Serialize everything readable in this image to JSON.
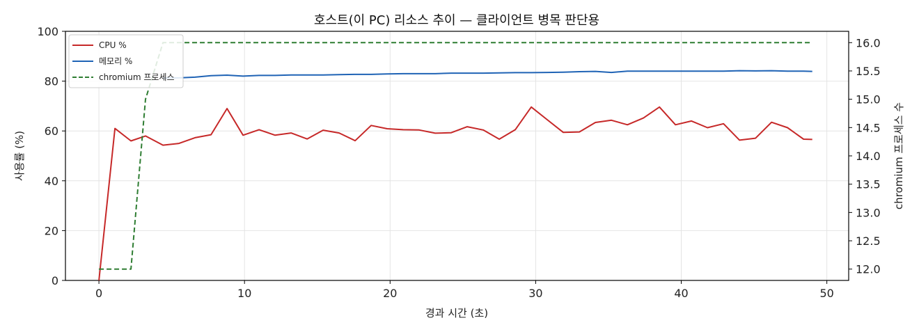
{
  "chart_data": {
    "type": "line",
    "title": "호스트(이 PC) 리소스 추이 — 클라이언트 병목 판단용",
    "xlabel": "경과 시간 (초)",
    "ylabel": "사용률 (%)",
    "y2label": "chromium 프로세스 수",
    "xlim": [
      -2.3,
      51.5
    ],
    "ylim": [
      0,
      100
    ],
    "y2lim": [
      11.8,
      16.2
    ],
    "xticks": [
      0,
      10,
      20,
      30,
      40,
      50
    ],
    "yticks": [
      0,
      20,
      40,
      60,
      80,
      100
    ],
    "y2ticks": [
      12.0,
      12.5,
      13.0,
      13.5,
      14.0,
      14.5,
      15.0,
      15.5,
      16.0
    ],
    "grid": true,
    "legend": "top-left",
    "x": [
      0,
      1.1,
      2.2,
      3.2,
      4.4,
      5.5,
      6.6,
      7.7,
      8.8,
      9.9,
      11.0,
      12.1,
      13.2,
      14.3,
      15.4,
      16.5,
      17.6,
      18.7,
      19.8,
      20.9,
      22.0,
      23.1,
      24.2,
      25.3,
      26.4,
      27.5,
      28.6,
      29.7,
      30.8,
      31.9,
      33.0,
      34.1,
      35.2,
      36.3,
      37.4,
      38.5,
      39.6,
      40.7,
      41.8,
      42.9,
      44.0,
      45.1,
      46.2,
      47.3,
      48.4,
      49.0
    ],
    "series": [
      {
        "name": "CPU %",
        "axis": "left",
        "color": "#c62828",
        "dash": "solid",
        "values": [
          0,
          61,
          56,
          58,
          54.3,
          55,
          57.3,
          58.5,
          69,
          58.3,
          60.5,
          58.3,
          59.2,
          56.8,
          60.3,
          59.2,
          56.1,
          62.2,
          60.9,
          60.5,
          60.4,
          59.1,
          59.3,
          61.7,
          60.4,
          56.7,
          60.5,
          69.6,
          64.5,
          59.4,
          59.6,
          63.4,
          64.3,
          62.5,
          65.2,
          69.6,
          62.5,
          64,
          61.3,
          62.9,
          56.3,
          57.1,
          63.5,
          61.3,
          56.7,
          56.6
        ]
      },
      {
        "name": "메모리 %",
        "axis": "left",
        "color": "#1f63b5",
        "dash": "solid",
        "values": [
          null,
          null,
          null,
          null,
          81.2,
          81.3,
          81.6,
          82.2,
          82.4,
          82.0,
          82.3,
          82.3,
          82.5,
          82.5,
          82.5,
          82.6,
          82.7,
          82.7,
          82.9,
          83.0,
          83.0,
          83.0,
          83.2,
          83.2,
          83.2,
          83.3,
          83.4,
          83.4,
          83.5,
          83.6,
          83.8,
          83.9,
          83.5,
          84.0,
          84.0,
          84.0,
          84.0,
          84.0,
          84.0,
          84.0,
          84.2,
          84.1,
          84.2,
          84.0,
          84.0,
          83.9
        ]
      },
      {
        "name": "chromium 프로세스",
        "axis": "right",
        "color": "#2e7d32",
        "dash": "dashed",
        "points": [
          [
            0,
            12
          ],
          [
            2.2,
            12
          ],
          [
            3.2,
            15
          ],
          [
            4.4,
            16
          ],
          [
            49,
            16
          ]
        ]
      }
    ]
  }
}
